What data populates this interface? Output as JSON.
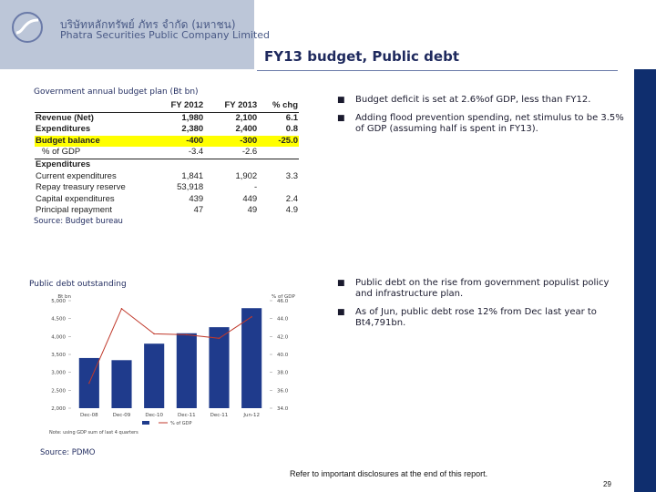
{
  "header": {
    "company_thai": "บริษัทหลักทรัพย์ ภัทร จำกัด (มหาชน)",
    "company_eng": "Phatra Securities Public Company Limited",
    "slide_title": "FY13 budget, Public debt"
  },
  "budget_section": {
    "title": "Government annual budget plan (Bt bn)",
    "columns": [
      "",
      "FY 2012",
      "FY 2013",
      "% chg"
    ],
    "rows": [
      {
        "label": "Revenue (Net)",
        "fy2012": "1,980",
        "fy2013": "2,100",
        "chg": "6.1",
        "bold": true
      },
      {
        "label": "Expenditures",
        "fy2012": "2,380",
        "fy2013": "2,400",
        "chg": "0.8",
        "bold": true
      },
      {
        "label": "Budget balance",
        "fy2012": "-400",
        "fy2013": "-300",
        "chg": "-25.0",
        "bold": true,
        "highlight": true
      },
      {
        "label": "% of GDP",
        "fy2012": "-3.4",
        "fy2013": "-2.6",
        "chg": "",
        "indent": true
      },
      {
        "label": "Expenditures",
        "fy2012": "",
        "fy2013": "",
        "chg": "",
        "bold": true
      },
      {
        "label": "Current expenditures",
        "fy2012": "1,841",
        "fy2013": "1,902",
        "chg": "3.3"
      },
      {
        "label": "Repay treasury reserve",
        "fy2012": "53,918",
        "fy2013": "-",
        "chg": ""
      },
      {
        "label": "Capital expenditures",
        "fy2012": "439",
        "fy2013": "449",
        "chg": "2.4"
      },
      {
        "label": "Principal repayment",
        "fy2012": "47",
        "fy2013": "49",
        "chg": "4.9"
      }
    ],
    "source": "Source: Budget bureau",
    "bullets": [
      "Budget deficit is set at 2.6%of GDP, less than FY12.",
      "Adding flood prevention spending, net stimulus to be 3.5% of GDP (assuming half is spent in FY13)."
    ]
  },
  "debt_section": {
    "title": "Public debt outstanding",
    "source": "Source: PDMO",
    "bullets": [
      "Public debt on the rise from government populist policy and infrastructure plan.",
      "As of Jun, public debt rose 12% from Dec last year to Bt4,791bn."
    ]
  },
  "chart_data": {
    "type": "bar",
    "title": "",
    "left_axis_label": "Bt bn",
    "right_axis_label": "% of GDP",
    "categories": [
      "Dec-08",
      "Dec-09",
      "Dec-10",
      "Dec-11",
      "Dec-11",
      "Jun-12"
    ],
    "left_ticks": [
      "2,000",
      "2,500",
      "3,000",
      "3,500",
      "4,000",
      "4,500",
      "5,000"
    ],
    "right_ticks": [
      "34.0",
      "36.0",
      "38.0",
      "40.0",
      "42.0",
      "44.0",
      "46.0"
    ],
    "ylim_left": [
      2000,
      5000
    ],
    "ylim_right": [
      34,
      46
    ],
    "series": [
      {
        "name": "",
        "type": "bar",
        "axis": "left",
        "values": [
          3400,
          3340,
          3800,
          4090,
          4260,
          4791
        ]
      },
      {
        "name": "% of GDP",
        "type": "line",
        "axis": "right",
        "values": [
          36.8,
          45.1,
          42.3,
          42.2,
          41.8,
          44.2
        ]
      }
    ],
    "footnote": "Note: using GDP sum of last 4 quarters",
    "colors": {
      "bar": "#1f3b8c",
      "line": "#c0392b"
    }
  },
  "footer": {
    "disclaimer": "Refer to important disclosures at the end of this report.",
    "page_number": "29"
  }
}
